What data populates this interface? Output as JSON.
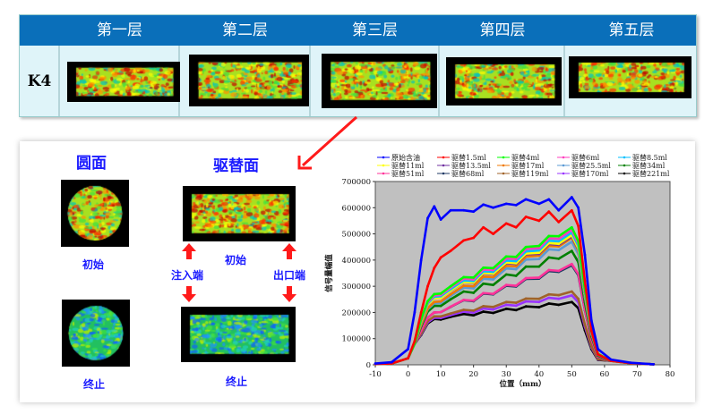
{
  "table": {
    "headers": [
      "第一层",
      "第二层",
      "第三层",
      "第四层",
      "第五层"
    ],
    "row_label": "K4"
  },
  "panel": {
    "round_title": "圆面",
    "flood_title": "驱替面",
    "initial": "初始",
    "final": "终止",
    "inlet": "注入端",
    "outlet": "出口端"
  },
  "colors": {
    "header": "#0a6fba",
    "label": "#1a1aff",
    "arrow": "#ff1a1a",
    "plot_bg": "#c0c0c0"
  },
  "chart_data": {
    "type": "line",
    "xlabel": "位置（mm）",
    "ylabel": "信号量幅值",
    "xlim": [
      -10,
      80
    ],
    "ylim": [
      0,
      700000
    ],
    "xticks": [
      -10,
      0,
      10,
      20,
      30,
      40,
      50,
      60,
      70,
      80
    ],
    "yticks": [
      0,
      100000,
      200000,
      300000,
      400000,
      500000,
      600000,
      700000
    ],
    "legend": "top",
    "x": [
      -10,
      -5,
      0,
      2,
      4,
      6,
      8,
      10,
      13,
      17,
      20,
      23,
      26,
      30,
      33,
      36,
      40,
      43,
      46,
      50,
      52,
      54,
      56,
      58,
      62,
      68,
      75
    ],
    "series": [
      {
        "name": "原始含油",
        "color": "#0000ff",
        "values": [
          5000,
          10000,
          60000,
          200000,
          400000,
          560000,
          605000,
          555000,
          590000,
          590000,
          585000,
          612000,
          600000,
          615000,
          610000,
          632000,
          615000,
          632000,
          590000,
          640000,
          600000,
          420000,
          170000,
          60000,
          20000,
          8000,
          2000
        ]
      },
      {
        "name": "驱替1.5ml",
        "color": "#ff0000",
        "values": [
          3000,
          5000,
          25000,
          90000,
          200000,
          300000,
          370000,
          410000,
          435000,
          475000,
          485000,
          525000,
          500000,
          540000,
          525000,
          565000,
          550000,
          585000,
          545000,
          590000,
          530000,
          320000,
          130000,
          40000,
          15000,
          6000,
          2000
        ]
      },
      {
        "name": "驱替4ml",
        "color": "#00ff00",
        "values": [
          3000,
          5000,
          25000,
          80000,
          175000,
          243000,
          270000,
          272000,
          300000,
          335000,
          333000,
          371000,
          369000,
          414000,
          412000,
          450000,
          454000,
          492000,
          491000,
          525000,
          472000,
          289000,
          131000,
          42000,
          15000,
          6000,
          2000
        ]
      },
      {
        "name": "驱替6ml",
        "color": "#ff3fbf",
        "values": [
          3000,
          5000,
          25000,
          80000,
          172000,
          238000,
          265000,
          267000,
          295000,
          329000,
          326000,
          364000,
          362000,
          406000,
          404000,
          442000,
          445000,
          483000,
          481000,
          515000,
          463000,
          283000,
          129000,
          41000,
          15000,
          6000,
          2000
        ]
      },
      {
        "name": "驱替8.5ml",
        "color": "#00bfff",
        "values": [
          3000,
          5000,
          25000,
          80000,
          169000,
          234000,
          260000,
          262000,
          289000,
          322000,
          320000,
          357000,
          355000,
          398000,
          396000,
          433000,
          437000,
          474000,
          472000,
          505000,
          454000,
          278000,
          126000,
          40000,
          15000,
          6000,
          2000
        ]
      },
      {
        "name": "驱替11ml",
        "color": "#ffff00",
        "values": [
          3000,
          5000,
          25000,
          80000,
          166000,
          230000,
          255000,
          256000,
          284000,
          316000,
          314000,
          351000,
          348000,
          391000,
          388000,
          425000,
          428000,
          465000,
          462000,
          495000,
          445000,
          272000,
          124000,
          40000,
          15000,
          6000,
          2000
        ]
      },
      {
        "name": "驱替13.5ml",
        "color": "#7030a0",
        "values": [
          3000,
          5000,
          25000,
          80000,
          166000,
          230000,
          255000,
          256000,
          283000,
          315000,
          312000,
          349000,
          346000,
          388000,
          385000,
          422000,
          424000,
          461000,
          458000,
          490000,
          441000,
          270000,
          122000,
          39000,
          15000,
          6000,
          2000
        ]
      },
      {
        "name": "驱替17ml",
        "color": "#f07800",
        "values": [
          3000,
          5000,
          25000,
          80000,
          156000,
          216000,
          240000,
          242000,
          269000,
          302000,
          300000,
          337000,
          335000,
          378000,
          376000,
          413000,
          417000,
          454000,
          452000,
          485000,
          436000,
          267000,
          121000,
          39000,
          15000,
          6000,
          2000
        ]
      },
      {
        "name": "驱替25.5ml",
        "color": "#5b9bd5",
        "values": [
          3000,
          5000,
          25000,
          80000,
          153000,
          212000,
          235000,
          236000,
          263000,
          295000,
          292000,
          329000,
          326000,
          368000,
          365000,
          402000,
          404000,
          441000,
          438000,
          470000,
          423000,
          258000,
          118000,
          38000,
          15000,
          6000,
          2000
        ]
      },
      {
        "name": "驱替34ml",
        "color": "#008000",
        "values": [
          3000,
          5000,
          25000,
          80000,
          146000,
          203000,
          225000,
          225000,
          250000,
          280000,
          275000,
          310000,
          305000,
          345000,
          340000,
          375000,
          375000,
          410000,
          405000,
          435000,
          392000,
          239000,
          109000,
          35000,
          15000,
          6000,
          2000
        ]
      },
      {
        "name": "驱替51ml",
        "color": "#ff3399",
        "values": [
          3000,
          5000,
          25000,
          80000,
          130000,
          180000,
          200000,
          201000,
          222000,
          248000,
          245000,
          274000,
          271000,
          305000,
          302000,
          331000,
          333000,
          362000,
          359000,
          385000,
          347000,
          212000,
          96000,
          31000,
          15000,
          6000,
          2000
        ]
      },
      {
        "name": "驱替68ml",
        "color": "#1f3864",
        "values": [
          3000,
          5000,
          25000,
          80000,
          130000,
          180000,
          200000,
          201000,
          221000,
          247000,
          243000,
          272000,
          269000,
          302000,
          299000,
          328000,
          329000,
          358000,
          355000,
          380000,
          342000,
          209000,
          95000,
          30000,
          15000,
          6000,
          2000
        ]
      },
      {
        "name": "驱替119ml",
        "color": "#a0632a",
        "values": [
          3000,
          5000,
          25000,
          80000,
          120000,
          167000,
          185000,
          185000,
          196000,
          210000,
          207000,
          224000,
          221000,
          240000,
          237000,
          253000,
          252000,
          269000,
          266000,
          280000,
          252000,
          154000,
          70000,
          22000,
          15000,
          6000,
          2000
        ]
      },
      {
        "name": "驱替170ml",
        "color": "#9933ff",
        "values": [
          3000,
          5000,
          25000,
          80000,
          117000,
          162000,
          180000,
          179000,
          190000,
          203000,
          199000,
          215000,
          211000,
          229000,
          226000,
          242000,
          240000,
          256000,
          252000,
          265000,
          239000,
          146000,
          66000,
          21000,
          15000,
          6000,
          2000
        ]
      },
      {
        "name": "驱替221ml",
        "color": "#000000",
        "values": [
          3000,
          5000,
          25000,
          80000,
          114000,
          158000,
          175000,
          173000,
          183000,
          194000,
          189000,
          203000,
          198000,
          214000,
          209000,
          223000,
          220000,
          234000,
          229000,
          240000,
          216000,
          132000,
          60000,
          19000,
          15000,
          6000,
          2000
        ]
      }
    ]
  }
}
